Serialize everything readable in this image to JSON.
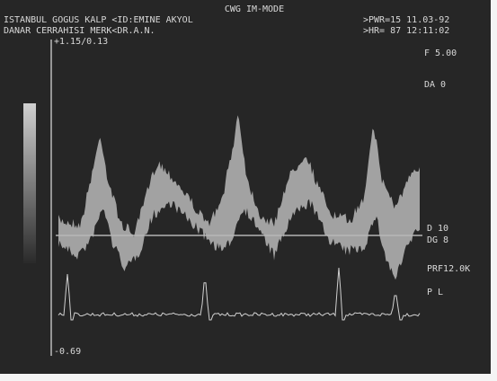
{
  "header": {
    "mode": "CWG IM-MODE",
    "line1": "ISTANBUL GOGUS KALP <ID:EMINE AKYOL",
    "line2": "DANAR CERRAHISI MERK<DR.A.N.",
    "right1": ">PWR=15 11.03-92",
    "right2": ">HR= 87 12:11:02"
  },
  "display": {
    "scale_top": "+1.15/0.13",
    "scale_bottom": "-0.69",
    "settings": [
      "F 5.00",
      "DA 0",
      "D 10",
      "DG 8",
      "PRF12.0K",
      "P L"
    ]
  }
}
